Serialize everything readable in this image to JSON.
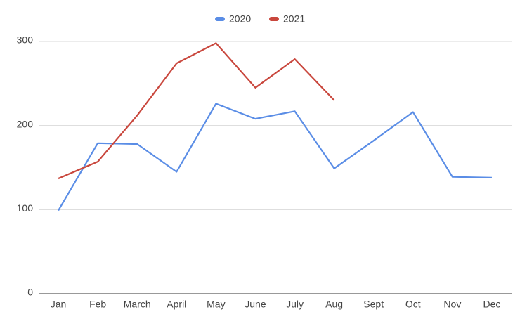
{
  "chart_data": {
    "type": "line",
    "categories": [
      "Jan",
      "Feb",
      "March",
      "April",
      "May",
      "June",
      "July",
      "Aug",
      "Sept",
      "Oct",
      "Nov",
      "Dec"
    ],
    "series": [
      {
        "name": "2020",
        "color": "#5a8de6",
        "values": [
          99,
          179,
          178,
          145,
          226,
          208,
          217,
          149,
          182,
          216,
          139,
          138
        ]
      },
      {
        "name": "2021",
        "color": "#c9473d",
        "values": [
          137,
          157,
          212,
          274,
          298,
          245,
          279,
          230,
          null,
          null,
          null,
          null
        ]
      }
    ],
    "ylim": [
      0,
      300
    ],
    "yticks": [
      0,
      100,
      200,
      300
    ],
    "grid": true,
    "legend": "top"
  }
}
